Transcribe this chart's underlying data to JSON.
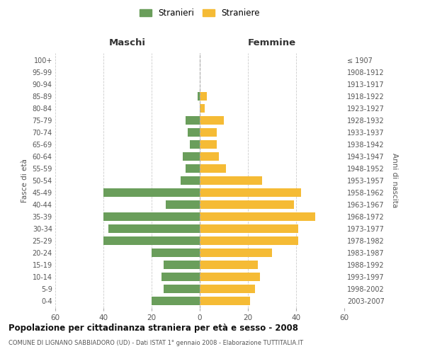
{
  "age_groups": [
    "0-4",
    "5-9",
    "10-14",
    "15-19",
    "20-24",
    "25-29",
    "30-34",
    "35-39",
    "40-44",
    "45-49",
    "50-54",
    "55-59",
    "60-64",
    "65-69",
    "70-74",
    "75-79",
    "80-84",
    "85-89",
    "90-94",
    "95-99",
    "100+"
  ],
  "birth_years": [
    "2003-2007",
    "1998-2002",
    "1993-1997",
    "1988-1992",
    "1983-1987",
    "1978-1982",
    "1973-1977",
    "1968-1972",
    "1963-1967",
    "1958-1962",
    "1953-1957",
    "1948-1952",
    "1943-1947",
    "1938-1942",
    "1933-1937",
    "1928-1932",
    "1923-1927",
    "1918-1922",
    "1913-1917",
    "1908-1912",
    "≤ 1907"
  ],
  "maschi": [
    20,
    15,
    16,
    15,
    20,
    40,
    38,
    40,
    14,
    40,
    8,
    6,
    7,
    4,
    5,
    6,
    0,
    1,
    0,
    0,
    0
  ],
  "femmine": [
    21,
    23,
    25,
    24,
    30,
    41,
    41,
    48,
    39,
    42,
    26,
    11,
    8,
    7,
    7,
    10,
    2,
    3,
    0,
    0,
    0
  ],
  "male_color": "#6a9e5b",
  "female_color": "#f5bb35",
  "background_color": "#ffffff",
  "grid_color": "#cccccc",
  "title": "Popolazione per cittadinanza straniera per età e sesso - 2008",
  "subtitle": "COMUNE DI LIGNANO SABBIADORO (UD) - Dati ISTAT 1° gennaio 2008 - Elaborazione TUTTITALIA.IT",
  "xlabel_left": "Maschi",
  "xlabel_right": "Femmine",
  "ylabel_left": "Fasce di età",
  "ylabel_right": "Anni di nascita",
  "legend_male": "Stranieri",
  "legend_female": "Straniere",
  "xlim": 60,
  "dpi": 100,
  "figsize": [
    6.0,
    5.0
  ]
}
